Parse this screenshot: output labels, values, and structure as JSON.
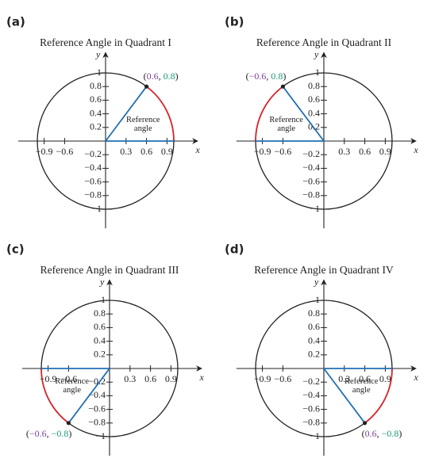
{
  "colors": {
    "x": "#7b3f9e",
    "y": "#1a9a7a",
    "arc": "#d9262b",
    "segment": "#1f6fb5"
  },
  "panels": [
    {
      "letter": "(a)",
      "title": "Reference Angle in Quadrant I",
      "point": [
        0.6,
        0.8
      ],
      "point_label": [
        "(",
        "0.6",
        ", ",
        "0.8",
        ")"
      ],
      "angle_label": [
        "Reference",
        "angle"
      ],
      "x_label": "x",
      "y_label": "y",
      "xticks": [
        {
          "value": -0.9,
          "label": "−0.9"
        },
        {
          "value": -0.6,
          "label": "−0.6"
        },
        0.3,
        0.6,
        0.9
      ],
      "yticks": [
        1,
        0.8,
        0.6,
        0.4,
        0.2,
        {
          "value": -0.2,
          "label": "−0.2"
        },
        {
          "value": -0.4,
          "label": "−0.4"
        },
        {
          "value": -0.6,
          "label": "−0.6"
        },
        {
          "value": -0.8,
          "label": "−0.8"
        },
        {
          "value": -1,
          "label": "−1"
        }
      ]
    },
    {
      "letter": "(b)",
      "title": "Reference Angle in Quadrant II",
      "point": [
        -0.6,
        0.8
      ],
      "point_label": [
        "(",
        "−0.6",
        ", ",
        "0.8",
        ")"
      ],
      "angle_label": [
        "Reference",
        "angle"
      ],
      "x_label": "x",
      "y_label": "y",
      "xticks": [
        {
          "value": -0.9,
          "label": "−0.9"
        },
        {
          "value": -0.6,
          "label": "−0.6"
        },
        0.3,
        0.6,
        0.9
      ],
      "yticks": [
        1,
        0.8,
        0.6,
        0.4,
        0.2,
        {
          "value": -0.2,
          "label": "−0.2"
        },
        {
          "value": -0.4,
          "label": "−0.4"
        },
        {
          "value": -0.6,
          "label": "−0.6"
        },
        {
          "value": -0.8,
          "label": "−0.8"
        },
        {
          "value": -1,
          "label": "−1"
        }
      ]
    },
    {
      "letter": "(c)",
      "title": "Reference Angle in Quadrant III",
      "point": [
        -0.6,
        -0.8
      ],
      "point_label": [
        "(",
        "−0.6",
        ", ",
        "−0.8",
        ")"
      ],
      "angle_label": [
        "Reference",
        "angle"
      ],
      "x_label": "x",
      "y_label": "y",
      "xticks": [
        {
          "value": -0.9,
          "label": "−0.9"
        },
        {
          "value": -0.6,
          "label": "−0.6"
        },
        0.3,
        0.6,
        0.9
      ],
      "yticks": [
        1,
        0.8,
        0.6,
        0.4,
        0.2,
        {
          "value": -0.2,
          "label": "−0.2"
        },
        {
          "value": -0.4,
          "label": "−0.4"
        },
        {
          "value": -0.6,
          "label": "−0.6"
        },
        {
          "value": -0.8,
          "label": "−0.8"
        },
        {
          "value": -1,
          "label": "−1"
        }
      ]
    },
    {
      "letter": "(d)",
      "title": "Reference Angle in Quadrant IV",
      "point": [
        0.6,
        -0.8
      ],
      "point_label": [
        "(",
        "0.6",
        ", ",
        "−0.8",
        ")"
      ],
      "angle_label": [
        "Reference",
        "angle"
      ],
      "x_label": "x",
      "y_label": "y",
      "xticks": [
        {
          "value": -0.9,
          "label": "−0.9"
        },
        {
          "value": -0.6,
          "label": "−0.6"
        },
        0.3,
        0.6,
        0.9
      ],
      "yticks": [
        1,
        0.8,
        0.6,
        0.4,
        0.2,
        {
          "value": -0.2,
          "label": "−0.2"
        },
        {
          "value": -0.4,
          "label": "−0.4"
        },
        {
          "value": -0.6,
          "label": "−0.6"
        },
        {
          "value": -0.8,
          "label": "−0.8"
        },
        {
          "value": -1,
          "label": "−1"
        }
      ]
    }
  ]
}
